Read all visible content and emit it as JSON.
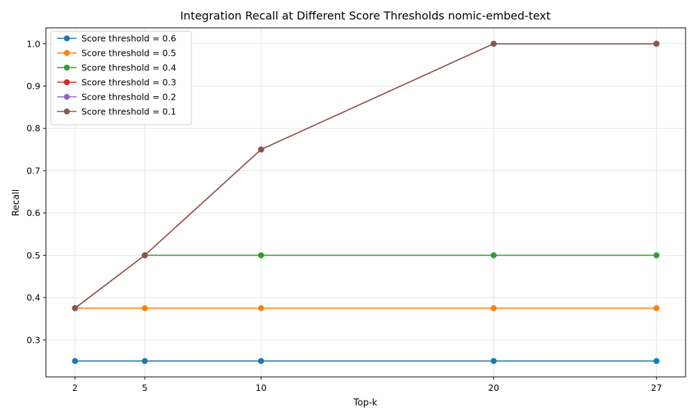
{
  "chart_data": {
    "type": "line",
    "title": "Integration Recall at Different Score Thresholds nomic-embed-text",
    "xlabel": "Top-k",
    "ylabel": "Recall",
    "x": [
      2,
      5,
      10,
      20,
      27
    ],
    "x_ticks": [
      "2",
      "5",
      "10",
      "20",
      "27"
    ],
    "y_ticks": [
      "0.3",
      "0.4",
      "0.5",
      "0.6",
      "0.7",
      "0.8",
      "0.9",
      "1.0"
    ],
    "xlim": [
      0.75,
      28.25
    ],
    "ylim": [
      0.2125,
      1.0375
    ],
    "grid": true,
    "legend_position": "top-left",
    "series": [
      {
        "name": "Score threshold = 0.6",
        "color": "#1f77b4",
        "values": [
          0.25,
          0.25,
          0.25,
          0.25,
          0.25
        ]
      },
      {
        "name": "Score threshold = 0.5",
        "color": "#ff7f0e",
        "values": [
          0.375,
          0.375,
          0.375,
          0.375,
          0.375
        ]
      },
      {
        "name": "Score threshold = 0.4",
        "color": "#2ca02c",
        "values": [
          0.375,
          0.5,
          0.5,
          0.5,
          0.5
        ]
      },
      {
        "name": "Score threshold = 0.3",
        "color": "#d62728",
        "values": [
          0.375,
          0.5,
          0.75,
          1.0,
          1.0
        ]
      },
      {
        "name": "Score threshold = 0.2",
        "color": "#9467bd",
        "values": [
          0.375,
          0.5,
          0.75,
          1.0,
          1.0
        ]
      },
      {
        "name": "Score threshold = 0.1",
        "color": "#8c564b",
        "values": [
          0.375,
          0.5,
          0.75,
          1.0,
          1.0
        ]
      }
    ]
  }
}
